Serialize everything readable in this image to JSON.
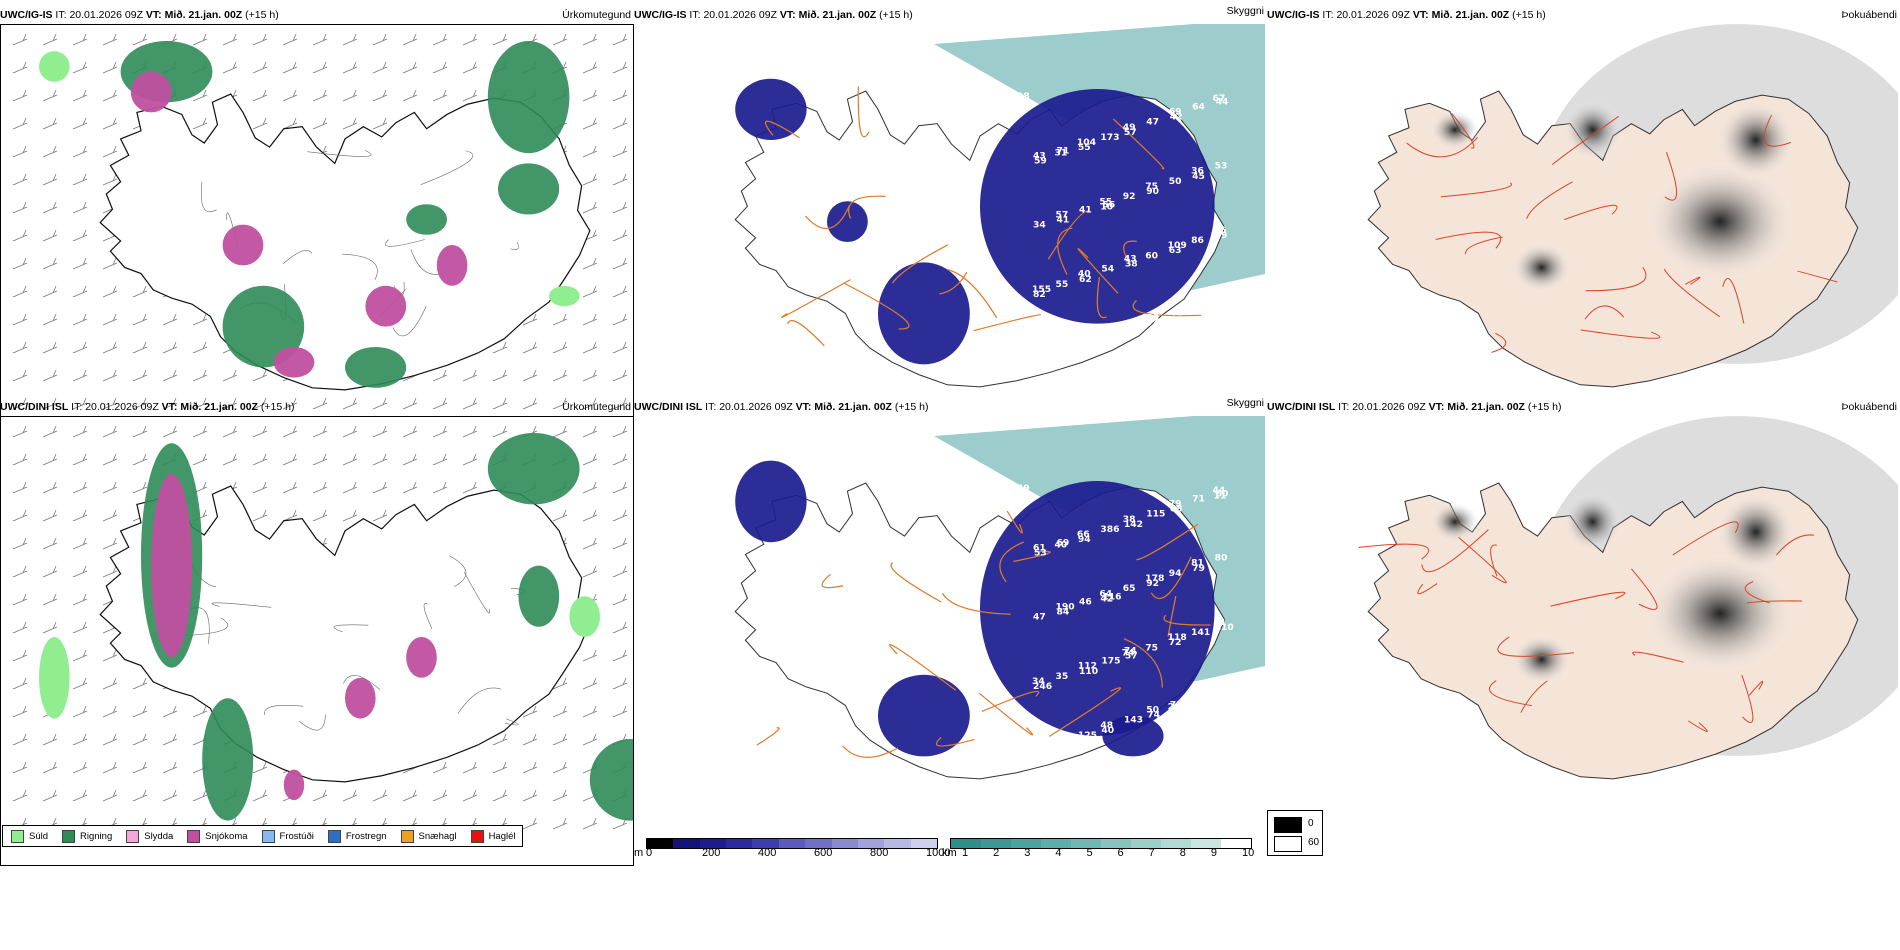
{
  "rows": [
    {
      "model": "UWC/IG-IS",
      "it_label": "IT:",
      "it_value": "20.01.2026 09Z",
      "vt_label": "VT:",
      "vt_value": "Mið. 21.jan. 00Z",
      "lead": "(+15 h)",
      "cloud_numbers": [
        "808",
        "71",
        "56",
        "43",
        "46",
        "44",
        "43",
        "41",
        "38",
        "58",
        "64",
        "59",
        "57",
        "54",
        "74",
        "69",
        "53",
        "41",
        "40",
        "39",
        "42",
        "36",
        "34",
        "62",
        "48",
        "47",
        "45",
        "56",
        "55",
        "39",
        "49",
        "50",
        "99",
        "155",
        "14",
        "57",
        "75",
        "86",
        "82",
        "88",
        "173",
        "90",
        "109",
        "73",
        "54",
        "104",
        "92",
        "63",
        "15",
        "121",
        "55",
        "55",
        "60",
        "43",
        "67",
        "31",
        "10"
      ]
    },
    {
      "model": "UWC/DINI ISL",
      "it_label": "IT:",
      "it_value": "20.01.2026 09Z",
      "vt_label": "VT:",
      "vt_value": "Mið. 21.jan. 00Z",
      "lead": "(+15 h)",
      "cloud_numbers": [
        "149",
        "69",
        "116",
        "74",
        "72",
        "60",
        "61",
        "46",
        "57",
        "50",
        "71",
        "53",
        "190",
        "175",
        "74",
        "79",
        "80",
        "84",
        "112",
        "143",
        "68",
        "81",
        "47",
        "110",
        "48",
        "115",
        "79",
        "51",
        "35",
        "40",
        "38",
        "94",
        "110",
        "34",
        "125",
        "142",
        "178",
        "141",
        "246",
        "218",
        "386",
        "92",
        "118",
        "79",
        "69",
        "66",
        "65",
        "72",
        "58",
        "53",
        "94",
        "64",
        "75",
        "101",
        "44",
        "40",
        "42",
        "74",
        "26",
        "11"
      ]
    }
  ],
  "panel_titles": {
    "precip": "Úrkomutegund",
    "cloud": "Skyggni",
    "fog": "Þokuábendi"
  },
  "precip_legend": [
    {
      "label": "Súld",
      "color": "#90ee90"
    },
    {
      "label": "Rigning",
      "color": "#2e8b57"
    },
    {
      "label": "Slydda",
      "color": "#f4a6d7"
    },
    {
      "label": "Snjókoma",
      "color": "#c04fa0"
    },
    {
      "label": "Frostúði",
      "color": "#87b8f0"
    },
    {
      "label": "Frostregn",
      "color": "#2f6fc4"
    },
    {
      "label": "Snæhagl",
      "color": "#f0a020"
    },
    {
      "label": "Haglél",
      "color": "#e81010"
    }
  ],
  "cloudbase_bar": {
    "unit": "m",
    "ticks": [
      "0",
      "200",
      "400",
      "600",
      "800",
      "1000"
    ],
    "colors": [
      "#000000",
      "#12127a",
      "#1c1c8e",
      "#2a2aa0",
      "#3d3db0",
      "#5a5ac0",
      "#7070c8",
      "#8a8ad2",
      "#a2a2dc",
      "#b8b8e4",
      "#d0d0ee"
    ]
  },
  "visibility_bar": {
    "unit": "km",
    "ticks": [
      "1",
      "2",
      "3",
      "4",
      "5",
      "6",
      "7",
      "8",
      "9",
      "10"
    ],
    "colors": [
      "#2e8e8a",
      "#3a9896",
      "#4aa3a0",
      "#5daea9",
      "#70b8b2",
      "#86c4bd",
      "#9ccfc8",
      "#b2dad4",
      "#c8e5df",
      "#ffffff"
    ]
  },
  "fog_legend": {
    "high": "0",
    "low": "60",
    "high_color": "#000000",
    "low_color": "#ffffff"
  },
  "colors": {
    "rain": "#2e8b57",
    "drizzle": "#90ee90",
    "snow": "#c04fa0",
    "sleet": "#f4a6d7",
    "cloud_deep": "#1b1b8f",
    "cloud_teal": "#4aa3a0",
    "road": "#e07a2a",
    "fog_land": "#f5e4d8",
    "fog_road": "#d9462a"
  }
}
